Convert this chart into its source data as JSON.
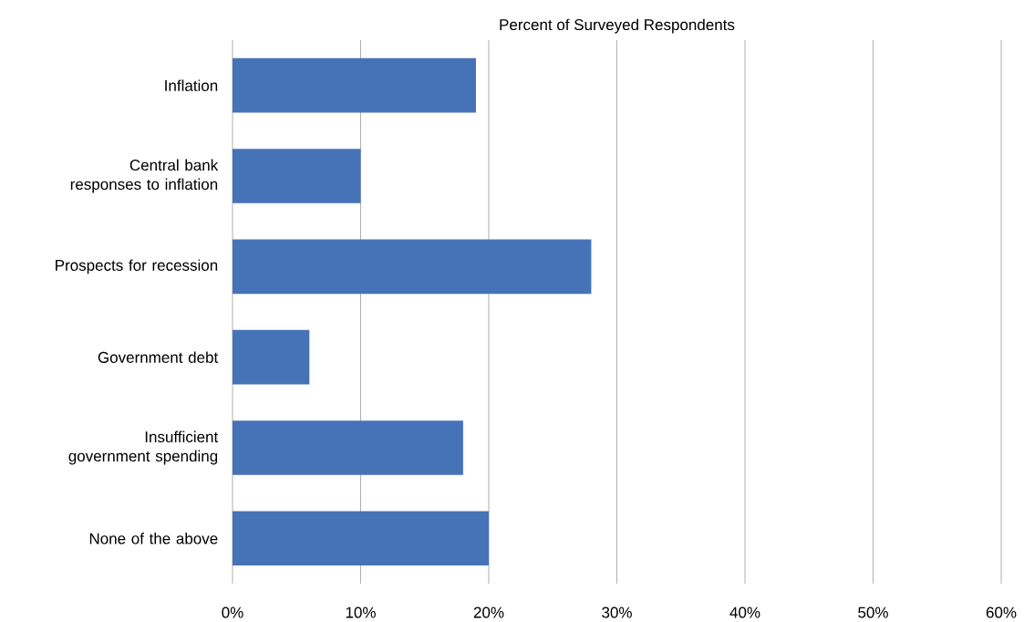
{
  "chart_data": {
    "type": "bar",
    "orientation": "horizontal",
    "xlabel": "Percent of Surveyed Respondents",
    "categories": [
      "Inflation",
      "Central bank responses to inflation",
      "Prospects for recession",
      "Government debt",
      "Insufficient government spending",
      "None of the above"
    ],
    "values": [
      19,
      10,
      28,
      6,
      18,
      20
    ],
    "color": "#4672b8",
    "xlim": [
      0,
      60
    ],
    "xticks": [
      {
        "value": 0,
        "label": "0%"
      },
      {
        "value": 10,
        "label": "10%"
      },
      {
        "value": 20,
        "label": "20%"
      },
      {
        "value": 30,
        "label": "30%"
      },
      {
        "value": 40,
        "label": "40%"
      },
      {
        "value": 50,
        "label": "50%"
      },
      {
        "value": 60,
        "label": "60%"
      }
    ],
    "grid": "x"
  }
}
